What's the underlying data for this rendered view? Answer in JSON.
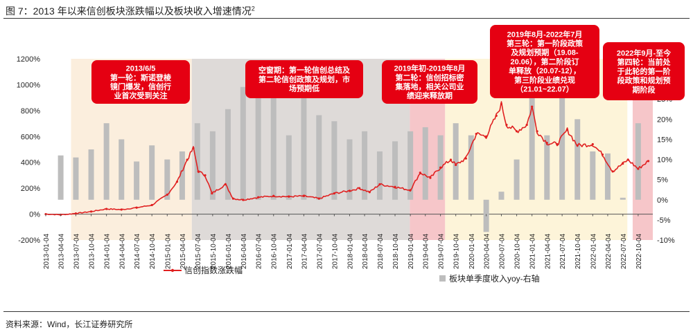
{
  "figure": {
    "title_prefix": "图 7：2013 年以来信创板块涨跌幅以及板块收入增速情况",
    "title_sup": "2",
    "source": "资料来源：Wind，长江证券研究所"
  },
  "colors": {
    "line": "#e02020",
    "bar": "#bdbdbd",
    "phase_beige": "#fbeedd",
    "phase_gray": "#dedad8",
    "phase_pink": "#f6c6c9",
    "phase_yellow": "#fdf4d9",
    "annotation_box": "#e50012"
  },
  "annotations": [
    {
      "lines": [
        "2013/6/5",
        "第一轮：斯诺登棱",
        "镜门爆发，信创行",
        "业首次受到关注"
      ]
    },
    {
      "lines": [
        "空窗期：第一轮信创总结及",
        "第二轮信创政策及规划，市",
        "场预期低"
      ]
    },
    {
      "lines": [
        "2019年初-2019年8月",
        "第二轮：信创招标密",
        "集落地，相关公司业",
        "绩迎来释放期"
      ]
    },
    {
      "lines": [
        "2019年8月-2022年7月",
        "第三轮：第一阶段政策",
        "及规划预期（19.08-",
        "20.06），第二阶段订",
        "单释放（20.07-12），",
        "第三阶段业绩兑现",
        "（21.01~22.07）"
      ]
    },
    {
      "lines": [
        "2022年9月-至今",
        "第四轮：当前处",
        "于此轮的第一阶",
        "段政策和规划预",
        "期阶段"
      ]
    }
  ],
  "chart_data": {
    "type": "bar+line",
    "y_left": {
      "ticks": [
        "1200%",
        "1000%",
        "800%",
        "600%",
        "400%",
        "200%",
        "0%",
        "-200%"
      ],
      "ylim": [
        -200,
        1200
      ]
    },
    "y_right": {
      "ticks": [
        "35%",
        "30%",
        "25%",
        "20%",
        "15%",
        "10%",
        "5%",
        "0%",
        "-5%",
        "-10%"
      ],
      "ylim": [
        -10,
        35
      ]
    },
    "x_labels": [
      "2013-01-04",
      "2013-04-04",
      "2013-07-04",
      "2013-10-04",
      "2014-01-04",
      "2014-04-04",
      "2014-07-04",
      "2014-10-04",
      "2015-01-04",
      "2015-04-04",
      "2015-07-04",
      "2015-10-04",
      "2016-01-04",
      "2016-04-04",
      "2016-07-04",
      "2016-10-04",
      "2017-01-04",
      "2017-04-04",
      "2017-07-04",
      "2017-10-04",
      "2018-01-04",
      "2018-04-04",
      "2018-07-04",
      "2018-10-04",
      "2019-01-04",
      "2019-04-04",
      "2019-07-04",
      "2019-10-04",
      "2020-01-04",
      "2020-04-04",
      "2020-07-04",
      "2020-10-04",
      "2021-01-04",
      "2021-04-04",
      "2021-07-04",
      "2021-10-04",
      "2022-01-04",
      "2022-04-04",
      "2022-07-04",
      "2022-10-04"
    ],
    "phases": [
      {
        "from": "2013-06-05",
        "to": "2015-06-01",
        "color": "phase_beige"
      },
      {
        "from": "2015-06-01",
        "to": "2019-01-01",
        "color": "phase_gray"
      },
      {
        "from": "2019-01-01",
        "to": "2019-08-01",
        "color": "phase_pink"
      },
      {
        "from": "2019-08-01",
        "to": "2022-07-31",
        "color": "phase_yellow"
      },
      {
        "from": "2022-09-01",
        "to": "2022-12-31",
        "color": "phase_pink"
      }
    ],
    "series": [
      {
        "name": "信创指数涨跌幅",
        "axis": "left",
        "points": [
          [
            "2013-01-04",
            0
          ],
          [
            "2013-04-04",
            -5
          ],
          [
            "2013-07-04",
            5
          ],
          [
            "2013-10-04",
            20
          ],
          [
            "2014-01-04",
            40
          ],
          [
            "2014-04-04",
            35
          ],
          [
            "2014-07-04",
            50
          ],
          [
            "2014-10-04",
            70
          ],
          [
            "2015-01-04",
            150
          ],
          [
            "2015-03-04",
            250
          ],
          [
            "2015-05-04",
            420
          ],
          [
            "2015-06-10",
            510
          ],
          [
            "2015-07-10",
            330
          ],
          [
            "2015-08-20",
            300
          ],
          [
            "2015-09-30",
            160
          ],
          [
            "2015-12-20",
            230
          ],
          [
            "2016-02-04",
            120
          ],
          [
            "2016-04-04",
            110
          ],
          [
            "2016-07-04",
            130
          ],
          [
            "2016-10-04",
            140
          ],
          [
            "2017-01-04",
            135
          ],
          [
            "2017-04-04",
            140
          ],
          [
            "2017-07-04",
            120
          ],
          [
            "2017-10-04",
            160
          ],
          [
            "2018-01-04",
            180
          ],
          [
            "2018-03-04",
            200
          ],
          [
            "2018-05-04",
            170
          ],
          [
            "2018-07-04",
            230
          ],
          [
            "2018-10-04",
            210
          ],
          [
            "2019-01-04",
            185
          ],
          [
            "2019-03-04",
            320
          ],
          [
            "2019-05-04",
            280
          ],
          [
            "2019-07-04",
            360
          ],
          [
            "2019-09-04",
            420
          ],
          [
            "2019-10-04",
            380
          ],
          [
            "2019-12-04",
            430
          ],
          [
            "2020-02-04",
            620
          ],
          [
            "2020-04-04",
            600
          ],
          [
            "2020-06-04",
            760
          ],
          [
            "2020-07-04",
            850
          ],
          [
            "2020-08-04",
            690
          ],
          [
            "2020-10-04",
            640
          ],
          [
            "2020-12-04",
            690
          ],
          [
            "2021-01-04",
            830
          ],
          [
            "2021-02-04",
            640
          ],
          [
            "2021-04-04",
            550
          ],
          [
            "2021-06-04",
            540
          ],
          [
            "2021-08-04",
            650
          ],
          [
            "2021-10-04",
            530
          ],
          [
            "2022-01-04",
            540
          ],
          [
            "2022-03-04",
            460
          ],
          [
            "2022-05-04",
            330
          ],
          [
            "2022-07-04",
            390
          ],
          [
            "2022-08-04",
            420
          ],
          [
            "2022-10-04",
            350
          ],
          [
            "2022-12-04",
            410
          ]
        ]
      },
      {
        "name": "板块单季度收入yoy-右轴",
        "axis": "right",
        "points": [
          [
            "2013-04-04",
            11
          ],
          [
            "2013-07-04",
            10.5
          ],
          [
            "2013-10-04",
            12.5
          ],
          [
            "2014-01-04",
            19
          ],
          [
            "2014-04-04",
            15
          ],
          [
            "2014-07-04",
            9.5
          ],
          [
            "2014-10-04",
            13.5
          ],
          [
            "2015-01-04",
            10
          ],
          [
            "2015-04-04",
            12
          ],
          [
            "2015-07-04",
            19
          ],
          [
            "2015-10-04",
            17
          ],
          [
            "2016-01-04",
            22.5
          ],
          [
            "2016-04-04",
            28
          ],
          [
            "2016-07-04",
            33.5
          ],
          [
            "2016-10-04",
            26.5
          ],
          [
            "2017-01-04",
            16
          ],
          [
            "2017-04-04",
            31
          ],
          [
            "2017-07-04",
            21
          ],
          [
            "2017-10-04",
            19.5
          ],
          [
            "2018-01-04",
            15
          ],
          [
            "2018-04-04",
            17
          ],
          [
            "2018-07-04",
            12
          ],
          [
            "2018-10-04",
            14.5
          ],
          [
            "2019-01-04",
            17
          ],
          [
            "2019-04-04",
            18
          ],
          [
            "2019-07-04",
            16
          ],
          [
            "2019-10-04",
            19
          ],
          [
            "2020-01-04",
            16
          ],
          [
            "2020-04-04",
            -8
          ],
          [
            "2020-07-04",
            2
          ],
          [
            "2020-10-04",
            10
          ],
          [
            "2021-01-04",
            29
          ],
          [
            "2021-04-04",
            16
          ],
          [
            "2021-07-04",
            32.5
          ],
          [
            "2021-10-04",
            20
          ],
          [
            "2022-01-04",
            12
          ],
          [
            "2022-04-04",
            11.5
          ],
          [
            "2022-07-04",
            0.5
          ],
          [
            "2022-10-04",
            19
          ]
        ]
      }
    ]
  }
}
